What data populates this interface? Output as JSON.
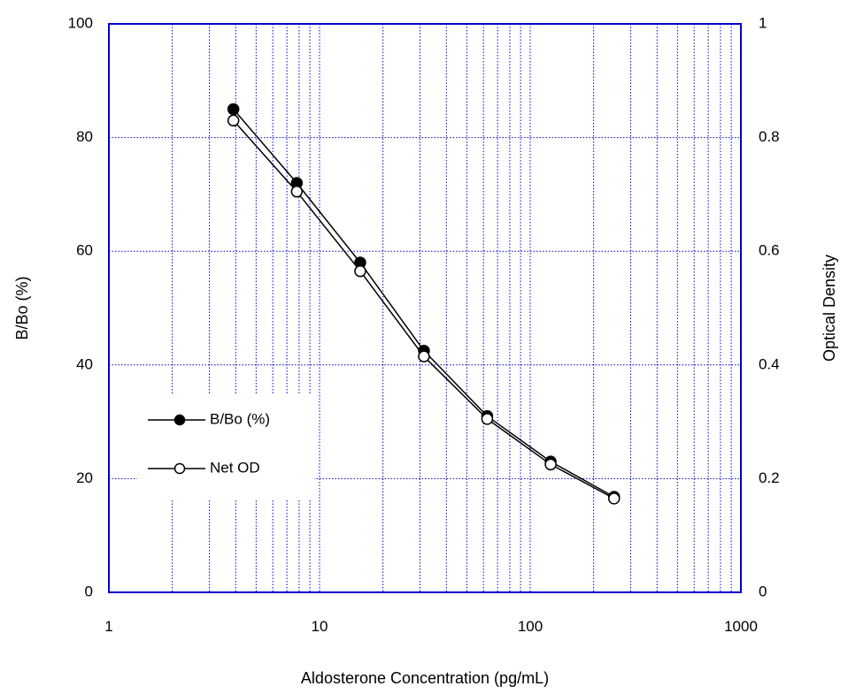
{
  "chart_data": {
    "type": "line",
    "xlabel": "Aldosterone Concentration (pg/mL)",
    "ylabel": "B/Bo (%)",
    "y2label": "Optical Density",
    "x_scale": "log",
    "xlim": [
      1,
      1000
    ],
    "ylim": [
      0,
      100
    ],
    "y2lim": [
      0,
      1
    ],
    "x_ticks": [
      "1",
      "10",
      "100",
      "1000"
    ],
    "y_ticks": [
      "0",
      "20",
      "40",
      "60",
      "80",
      "100"
    ],
    "y2_ticks": [
      "0",
      "0.2",
      "0.4",
      "0.6",
      "0.8",
      "1"
    ],
    "grid": true,
    "legend_position": "lower-left",
    "colors": {
      "axis": "#0000cc",
      "grid": "#0000cc",
      "series": "#000000"
    },
    "x": [
      3.9,
      7.8,
      15.6,
      31.3,
      62.5,
      125,
      250
    ],
    "series": [
      {
        "name": "B/Bo (%)",
        "axis": "left",
        "marker": "filled-circle",
        "values": [
          85,
          72,
          58,
          42.5,
          31,
          23,
          16.8
        ]
      },
      {
        "name": "Net OD",
        "axis": "right",
        "marker": "open-circle",
        "values": [
          0.83,
          0.705,
          0.565,
          0.415,
          0.305,
          0.225,
          0.165
        ]
      }
    ]
  }
}
